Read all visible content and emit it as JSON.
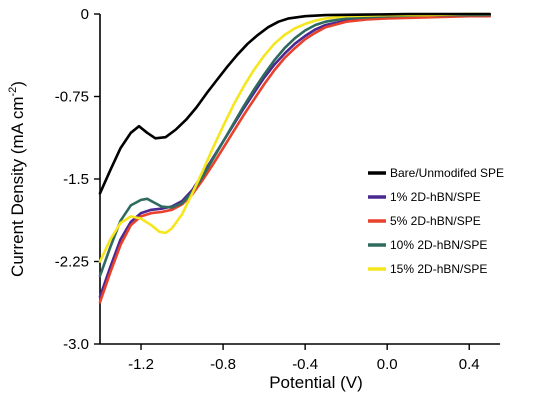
{
  "chart_data": {
    "type": "line",
    "title": "",
    "xlabel": "Potential (V)",
    "ylabel_main": "Current Density (mA cm",
    "ylabel_sup": "-2",
    "ylabel_tail": ")",
    "xlim": [
      -1.4,
      0.55
    ],
    "ylim": [
      -3.0,
      0.0
    ],
    "x_ticks": [
      -1.2,
      -0.8,
      -0.4,
      0.0,
      0.4
    ],
    "x_tick_labels": [
      "-1.2",
      "-0.8",
      "-0.4",
      "0.0",
      "0.4"
    ],
    "y_ticks": [
      0,
      -0.75,
      -1.5,
      -2.25,
      -3.0
    ],
    "y_tick_labels": [
      "0",
      "-0.75",
      "-1.5",
      "-2.25",
      "-3.0"
    ],
    "grid": false,
    "legend_position": "right",
    "series": [
      {
        "name": "Bare/Unmodifed SPE",
        "color": "#000000",
        "points": [
          [
            -1.4,
            -1.63
          ],
          [
            -1.35,
            -1.42
          ],
          [
            -1.3,
            -1.22
          ],
          [
            -1.25,
            -1.08
          ],
          [
            -1.21,
            -1.02
          ],
          [
            -1.17,
            -1.08
          ],
          [
            -1.13,
            -1.13
          ],
          [
            -1.08,
            -1.12
          ],
          [
            -1.03,
            -1.05
          ],
          [
            -0.98,
            -0.96
          ],
          [
            -0.93,
            -0.85
          ],
          [
            -0.88,
            -0.72
          ],
          [
            -0.83,
            -0.6
          ],
          [
            -0.78,
            -0.48
          ],
          [
            -0.73,
            -0.37
          ],
          [
            -0.68,
            -0.27
          ],
          [
            -0.63,
            -0.19
          ],
          [
            -0.58,
            -0.12
          ],
          [
            -0.53,
            -0.07
          ],
          [
            -0.48,
            -0.04
          ],
          [
            -0.4,
            -0.02
          ],
          [
            -0.3,
            -0.01
          ],
          [
            -0.1,
            -0.005
          ],
          [
            0.1,
            0.0
          ],
          [
            0.3,
            0.0
          ],
          [
            0.5,
            0.0
          ]
        ]
      },
      {
        "name": "1% 2D-hBN/SPE",
        "color": "#4b2991",
        "points": [
          [
            -1.4,
            -2.57
          ],
          [
            -1.35,
            -2.3
          ],
          [
            -1.3,
            -2.05
          ],
          [
            -1.25,
            -1.89
          ],
          [
            -1.2,
            -1.81
          ],
          [
            -1.15,
            -1.78
          ],
          [
            -1.1,
            -1.77
          ],
          [
            -1.05,
            -1.75
          ],
          [
            -1.0,
            -1.7
          ],
          [
            -0.95,
            -1.6
          ],
          [
            -0.9,
            -1.46
          ],
          [
            -0.85,
            -1.31
          ],
          [
            -0.8,
            -1.16
          ],
          [
            -0.75,
            -1.01
          ],
          [
            -0.7,
            -0.86
          ],
          [
            -0.65,
            -0.72
          ],
          [
            -0.6,
            -0.58
          ],
          [
            -0.55,
            -0.46
          ],
          [
            -0.5,
            -0.36
          ],
          [
            -0.45,
            -0.27
          ],
          [
            -0.4,
            -0.2
          ],
          [
            -0.35,
            -0.14
          ],
          [
            -0.3,
            -0.1
          ],
          [
            -0.2,
            -0.06
          ],
          [
            -0.1,
            -0.04
          ],
          [
            0.0,
            -0.03
          ],
          [
            0.2,
            -0.02
          ],
          [
            0.4,
            -0.01
          ],
          [
            0.5,
            -0.01
          ]
        ]
      },
      {
        "name": "5% 2D-hBN/SPE",
        "color": "#e8412c",
        "points": [
          [
            -1.4,
            -2.62
          ],
          [
            -1.35,
            -2.35
          ],
          [
            -1.3,
            -2.1
          ],
          [
            -1.25,
            -1.92
          ],
          [
            -1.2,
            -1.84
          ],
          [
            -1.15,
            -1.81
          ],
          [
            -1.1,
            -1.8
          ],
          [
            -1.05,
            -1.78
          ],
          [
            -1.0,
            -1.73
          ],
          [
            -0.95,
            -1.64
          ],
          [
            -0.9,
            -1.51
          ],
          [
            -0.85,
            -1.37
          ],
          [
            -0.8,
            -1.22
          ],
          [
            -0.75,
            -1.07
          ],
          [
            -0.7,
            -0.92
          ],
          [
            -0.65,
            -0.78
          ],
          [
            -0.6,
            -0.64
          ],
          [
            -0.55,
            -0.51
          ],
          [
            -0.5,
            -0.4
          ],
          [
            -0.45,
            -0.31
          ],
          [
            -0.4,
            -0.23
          ],
          [
            -0.35,
            -0.17
          ],
          [
            -0.3,
            -0.12
          ],
          [
            -0.2,
            -0.07
          ],
          [
            -0.1,
            -0.05
          ],
          [
            0.0,
            -0.04
          ],
          [
            0.2,
            -0.03
          ],
          [
            0.4,
            -0.02
          ],
          [
            0.5,
            -0.02
          ]
        ]
      },
      {
        "name": "10% 2D-hBN/SPE",
        "color": "#2e6b5e",
        "points": [
          [
            -1.4,
            -2.38
          ],
          [
            -1.35,
            -2.12
          ],
          [
            -1.3,
            -1.88
          ],
          [
            -1.25,
            -1.74
          ],
          [
            -1.2,
            -1.69
          ],
          [
            -1.17,
            -1.68
          ],
          [
            -1.14,
            -1.71
          ],
          [
            -1.1,
            -1.75
          ],
          [
            -1.05,
            -1.76
          ],
          [
            -1.0,
            -1.72
          ],
          [
            -0.95,
            -1.62
          ],
          [
            -0.9,
            -1.48
          ],
          [
            -0.85,
            -1.32
          ],
          [
            -0.8,
            -1.16
          ],
          [
            -0.75,
            -1.0
          ],
          [
            -0.7,
            -0.84
          ],
          [
            -0.65,
            -0.69
          ],
          [
            -0.6,
            -0.55
          ],
          [
            -0.55,
            -0.42
          ],
          [
            -0.5,
            -0.31
          ],
          [
            -0.45,
            -0.22
          ],
          [
            -0.4,
            -0.15
          ],
          [
            -0.35,
            -0.1
          ],
          [
            -0.3,
            -0.07
          ],
          [
            -0.2,
            -0.04
          ],
          [
            -0.1,
            -0.03
          ],
          [
            0.0,
            -0.02
          ],
          [
            0.2,
            -0.01
          ],
          [
            0.4,
            -0.01
          ],
          [
            0.5,
            -0.01
          ]
        ]
      },
      {
        "name": "15% 2D-hBN/SPE",
        "color": "#f5e61e",
        "points": [
          [
            -1.4,
            -2.25
          ],
          [
            -1.35,
            -2.05
          ],
          [
            -1.3,
            -1.9
          ],
          [
            -1.25,
            -1.84
          ],
          [
            -1.2,
            -1.86
          ],
          [
            -1.15,
            -1.92
          ],
          [
            -1.11,
            -1.98
          ],
          [
            -1.08,
            -1.99
          ],
          [
            -1.05,
            -1.95
          ],
          [
            -1.0,
            -1.82
          ],
          [
            -0.95,
            -1.63
          ],
          [
            -0.9,
            -1.43
          ],
          [
            -0.85,
            -1.22
          ],
          [
            -0.8,
            -1.02
          ],
          [
            -0.75,
            -0.83
          ],
          [
            -0.7,
            -0.66
          ],
          [
            -0.65,
            -0.51
          ],
          [
            -0.6,
            -0.38
          ],
          [
            -0.55,
            -0.27
          ],
          [
            -0.5,
            -0.19
          ],
          [
            -0.45,
            -0.13
          ],
          [
            -0.4,
            -0.09
          ],
          [
            -0.35,
            -0.06
          ],
          [
            -0.3,
            -0.04
          ],
          [
            -0.2,
            -0.02
          ],
          [
            0.0,
            -0.01
          ],
          [
            0.2,
            -0.01
          ],
          [
            0.4,
            0.0
          ],
          [
            0.5,
            0.0
          ]
        ]
      }
    ]
  }
}
